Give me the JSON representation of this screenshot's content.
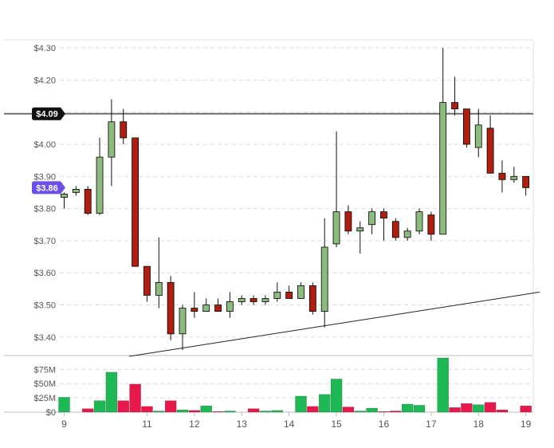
{
  "chart_data": {
    "type": "candlestick",
    "y_axis": {
      "ticks": [
        "$4.30",
        "$4.20",
        "$4.10",
        "$4.00",
        "$3.90",
        "$3.80",
        "$3.70",
        "$3.60",
        "$3.50",
        "$3.40"
      ],
      "tick_values": [
        4.3,
        4.2,
        4.1,
        4.0,
        3.9,
        3.8,
        3.7,
        3.6,
        3.5,
        3.4
      ],
      "ylim": [
        3.345,
        4.325
      ],
      "grid": true
    },
    "x_axis": {
      "ticks": [
        "9",
        "11",
        "12",
        "13",
        "14",
        "15",
        "16",
        "17",
        "18",
        "19"
      ],
      "tick_index": [
        0,
        7,
        11,
        15,
        19,
        23,
        27,
        31,
        35,
        39
      ],
      "xlim": [
        -0.3,
        40.2
      ]
    },
    "price_badges": {
      "horizontal_line": {
        "label": "$4.09",
        "value": 4.095,
        "color": "#111111"
      },
      "last_price": {
        "label": "$3.86",
        "value": 3.865,
        "color": "#6a4fe8"
      }
    },
    "trendline": {
      "from": {
        "i": 5.5,
        "price": 3.34
      },
      "to": {
        "i": 40.2,
        "price": 3.54
      }
    },
    "candles": [
      {
        "i": 0,
        "open": 3.835,
        "high": 3.85,
        "low": 3.8,
        "close": 3.845
      },
      {
        "i": 1,
        "open": 3.85,
        "high": 3.87,
        "low": 3.84,
        "close": 3.86
      },
      {
        "i": 2,
        "open": 3.86,
        "high": 3.87,
        "low": 3.78,
        "close": 3.785
      },
      {
        "i": 3,
        "open": 3.785,
        "high": 4.02,
        "low": 3.78,
        "close": 3.96
      },
      {
        "i": 4,
        "open": 3.96,
        "high": 4.14,
        "low": 3.87,
        "close": 4.07
      },
      {
        "i": 5,
        "open": 4.07,
        "high": 4.11,
        "low": 4.0,
        "close": 4.02
      },
      {
        "i": 6,
        "open": 4.02,
        "high": 4.02,
        "low": 3.62,
        "close": 3.62
      },
      {
        "i": 7,
        "open": 3.62,
        "high": 3.62,
        "low": 3.51,
        "close": 3.53
      },
      {
        "i": 8,
        "open": 3.53,
        "high": 3.71,
        "low": 3.49,
        "close": 3.57
      },
      {
        "i": 9,
        "open": 3.57,
        "high": 3.59,
        "low": 3.39,
        "close": 3.41
      },
      {
        "i": 10,
        "open": 3.41,
        "high": 3.5,
        "low": 3.36,
        "close": 3.49
      },
      {
        "i": 11,
        "open": 3.49,
        "high": 3.54,
        "low": 3.46,
        "close": 3.48
      },
      {
        "i": 12,
        "open": 3.48,
        "high": 3.52,
        "low": 3.48,
        "close": 3.5
      },
      {
        "i": 13,
        "open": 3.5,
        "high": 3.52,
        "low": 3.48,
        "close": 3.48
      },
      {
        "i": 14,
        "open": 3.48,
        "high": 3.54,
        "low": 3.46,
        "close": 3.51
      },
      {
        "i": 15,
        "open": 3.51,
        "high": 3.53,
        "low": 3.5,
        "close": 3.52
      },
      {
        "i": 16,
        "open": 3.52,
        "high": 3.53,
        "low": 3.5,
        "close": 3.51
      },
      {
        "i": 17,
        "open": 3.51,
        "high": 3.53,
        "low": 3.5,
        "close": 3.52
      },
      {
        "i": 18,
        "open": 3.52,
        "high": 3.57,
        "low": 3.51,
        "close": 3.54
      },
      {
        "i": 19,
        "open": 3.54,
        "high": 3.56,
        "low": 3.52,
        "close": 3.52
      },
      {
        "i": 20,
        "open": 3.52,
        "high": 3.57,
        "low": 3.52,
        "close": 3.56
      },
      {
        "i": 21,
        "open": 3.56,
        "high": 3.57,
        "low": 3.47,
        "close": 3.48
      },
      {
        "i": 22,
        "open": 3.48,
        "high": 3.77,
        "low": 3.43,
        "close": 3.68
      },
      {
        "i": 23,
        "open": 3.69,
        "high": 4.04,
        "low": 3.68,
        "close": 3.79
      },
      {
        "i": 24,
        "open": 3.79,
        "high": 3.81,
        "low": 3.72,
        "close": 3.73
      },
      {
        "i": 25,
        "open": 3.73,
        "high": 3.76,
        "low": 3.66,
        "close": 3.74
      },
      {
        "i": 26,
        "open": 3.75,
        "high": 3.8,
        "low": 3.72,
        "close": 3.79
      },
      {
        "i": 27,
        "open": 3.79,
        "high": 3.8,
        "low": 3.7,
        "close": 3.77
      },
      {
        "i": 28,
        "open": 3.76,
        "high": 3.77,
        "low": 3.7,
        "close": 3.71
      },
      {
        "i": 29,
        "open": 3.71,
        "high": 3.74,
        "low": 3.7,
        "close": 3.73
      },
      {
        "i": 30,
        "open": 3.73,
        "high": 3.8,
        "low": 3.72,
        "close": 3.79
      },
      {
        "i": 31,
        "open": 3.78,
        "high": 3.79,
        "low": 3.7,
        "close": 3.72
      },
      {
        "i": 32,
        "open": 3.72,
        "high": 4.3,
        "low": 3.72,
        "close": 4.13
      },
      {
        "i": 33,
        "open": 4.13,
        "high": 4.21,
        "low": 4.09,
        "close": 4.11
      },
      {
        "i": 34,
        "open": 4.11,
        "high": 4.11,
        "low": 3.99,
        "close": 4.0
      },
      {
        "i": 35,
        "open": 3.99,
        "high": 4.11,
        "low": 3.96,
        "close": 4.06
      },
      {
        "i": 36,
        "open": 4.05,
        "high": 4.09,
        "low": 3.91,
        "close": 3.91
      },
      {
        "i": 37,
        "open": 3.91,
        "high": 3.95,
        "low": 3.85,
        "close": 3.89
      },
      {
        "i": 38,
        "open": 3.89,
        "high": 3.93,
        "low": 3.88,
        "close": 3.9
      },
      {
        "i": 39,
        "open": 3.9,
        "high": 3.9,
        "low": 3.84,
        "close": 3.865
      }
    ],
    "volume": {
      "ticks": [
        "$75M",
        "$50M",
        "$25M",
        "$0"
      ],
      "tick_values": [
        75,
        50,
        25,
        0
      ],
      "ylim": [
        0,
        95
      ],
      "values": [
        26,
        0,
        6,
        20,
        70,
        20,
        49,
        10,
        2,
        20,
        4,
        3,
        11,
        1,
        2,
        0,
        6,
        2,
        3,
        0,
        28,
        10,
        31,
        58,
        9,
        2,
        7,
        1,
        2,
        14,
        12,
        0,
        95,
        8,
        15,
        13,
        17,
        4,
        0,
        11
      ],
      "direction": [
        "up",
        "flat",
        "down",
        "up",
        "up",
        "down",
        "down",
        "down",
        "up",
        "down",
        "up",
        "down",
        "up",
        "down",
        "up",
        "up",
        "down",
        "up",
        "up",
        "down",
        "up",
        "down",
        "up",
        "up",
        "down",
        "up",
        "up",
        "down",
        "down",
        "up",
        "up",
        "down",
        "up",
        "down",
        "down",
        "up",
        "down",
        "down",
        "up",
        "down"
      ]
    },
    "colors": {
      "up_body": "#8dbb7e",
      "down_body": "#b01e10",
      "candle_border": "#000000",
      "vol_up": "#1db954",
      "vol_down": "#e8174c",
      "grid": "#dcdcdc",
      "axis_text": "#555555"
    }
  }
}
